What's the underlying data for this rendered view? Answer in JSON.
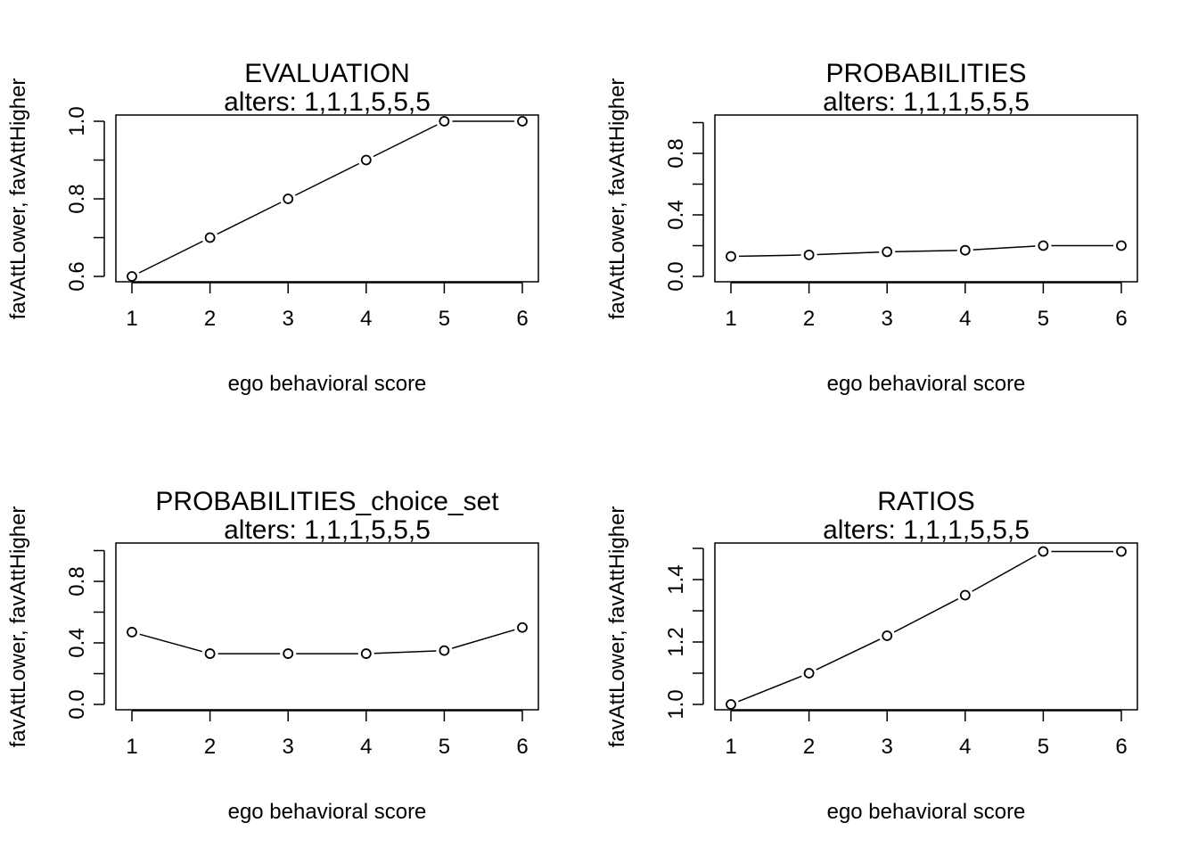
{
  "chart_data": [
    {
      "type": "line",
      "title": "EVALUATION",
      "subtitle": "alters: 1,1,1,5,5,5",
      "xlabel": "ego behavioral score",
      "ylabel": "favAttLower, favAttHigher",
      "x": [
        1,
        2,
        3,
        4,
        5,
        6
      ],
      "y": [
        0.6,
        0.7,
        0.8,
        0.9,
        1.0,
        1.0
      ],
      "xlim": [
        1,
        6
      ],
      "ylim": [
        0.6,
        1.0
      ],
      "xticks": [
        1,
        2,
        3,
        4,
        5,
        6
      ],
      "yticks": [
        0.6,
        0.7,
        0.8,
        0.9,
        1.0
      ],
      "ytick_labels": [
        "0.6",
        "",
        "0.8",
        "",
        "1.0"
      ],
      "grid": false
    },
    {
      "type": "line",
      "title": "PROBABILITIES",
      "subtitle": "alters: 1,1,1,5,5,5",
      "xlabel": "ego behavioral score",
      "ylabel": "favAttLower, favAttHigher",
      "x": [
        1,
        2,
        3,
        4,
        5,
        6
      ],
      "y": [
        0.13,
        0.14,
        0.16,
        0.17,
        0.2,
        0.2
      ],
      "xlim": [
        1,
        6
      ],
      "ylim": [
        0.0,
        1.0
      ],
      "xticks": [
        1,
        2,
        3,
        4,
        5,
        6
      ],
      "yticks": [
        0.0,
        0.2,
        0.4,
        0.6,
        0.8,
        1.0
      ],
      "ytick_labels": [
        "0.0",
        "",
        "0.4",
        "",
        "0.8",
        ""
      ],
      "grid": false
    },
    {
      "type": "line",
      "title": "PROBABILITIES_choice_set",
      "subtitle": "alters: 1,1,1,5,5,5",
      "xlabel": "ego behavioral score",
      "ylabel": "favAttLower, favAttHigher",
      "x": [
        1,
        2,
        3,
        4,
        5,
        6
      ],
      "y": [
        0.47,
        0.33,
        0.33,
        0.33,
        0.35,
        0.5
      ],
      "xlim": [
        1,
        6
      ],
      "ylim": [
        0.0,
        1.0
      ],
      "xticks": [
        1,
        2,
        3,
        4,
        5,
        6
      ],
      "yticks": [
        0.0,
        0.2,
        0.4,
        0.6,
        0.8,
        1.0
      ],
      "ytick_labels": [
        "0.0",
        "",
        "0.4",
        "",
        "0.8",
        ""
      ],
      "grid": false
    },
    {
      "type": "line",
      "title": "RATIOS",
      "subtitle": "alters: 1,1,1,5,5,5",
      "xlabel": "ego behavioral score",
      "ylabel": "favAttLower, favAttHigher",
      "x": [
        1,
        2,
        3,
        4,
        5,
        6
      ],
      "y": [
        1.0,
        1.1,
        1.22,
        1.35,
        1.49,
        1.49
      ],
      "xlim": [
        1,
        6
      ],
      "ylim": [
        1.0,
        1.5
      ],
      "xticks": [
        1,
        2,
        3,
        4,
        5,
        6
      ],
      "yticks": [
        1.0,
        1.1,
        1.2,
        1.3,
        1.4,
        1.5
      ],
      "ytick_labels": [
        "1.0",
        "",
        "1.2",
        "",
        "1.4",
        ""
      ],
      "grid": false
    }
  ]
}
